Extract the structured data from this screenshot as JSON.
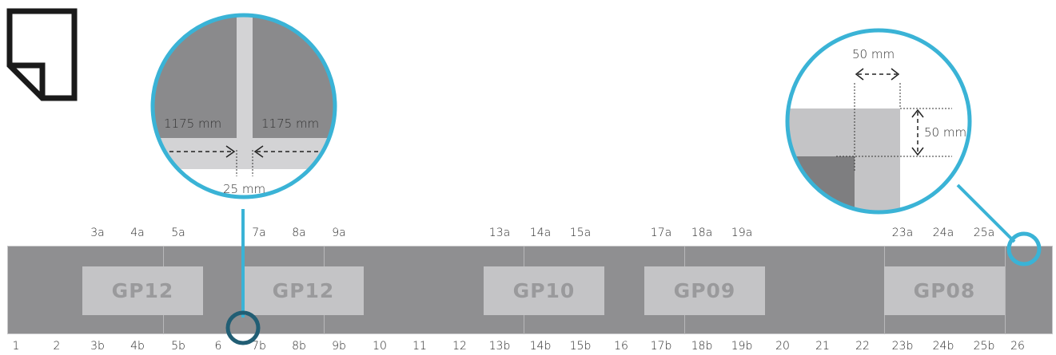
{
  "colors": {
    "accent": "#3ab3d6",
    "accent_dark": "#215e74",
    "strip": "#8f8f91",
    "panel": "#c4c4c6",
    "panel_text": "#9a9a9c",
    "zoom_dark": "#8a8a8c",
    "zoom_light": "#d3d3d5"
  },
  "icon": "document-page-icon",
  "top_labels": [
    "3a",
    "4a",
    "5a",
    "7a",
    "8a",
    "9a",
    "13a",
    "14a",
    "15a",
    "17a",
    "18a",
    "19a",
    "23a",
    "24a",
    "25a"
  ],
  "bottom_labels": [
    "1",
    "2",
    "3b",
    "4b",
    "5b",
    "6",
    "7b",
    "8b",
    "9b",
    "10",
    "11",
    "12",
    "13b",
    "14b",
    "15b",
    "16",
    "17b",
    "18b",
    "19b",
    "20",
    "21",
    "22",
    "23b",
    "24b",
    "25b",
    "26"
  ],
  "panels": [
    "GP12",
    "GP12",
    "GP10",
    "GP09",
    "GP08"
  ],
  "detail_left": {
    "left_width": "1175 mm",
    "right_width": "1175 mm",
    "gap": "25 mm"
  },
  "detail_right": {
    "horizontal": "50 mm",
    "vertical": "50 mm"
  }
}
